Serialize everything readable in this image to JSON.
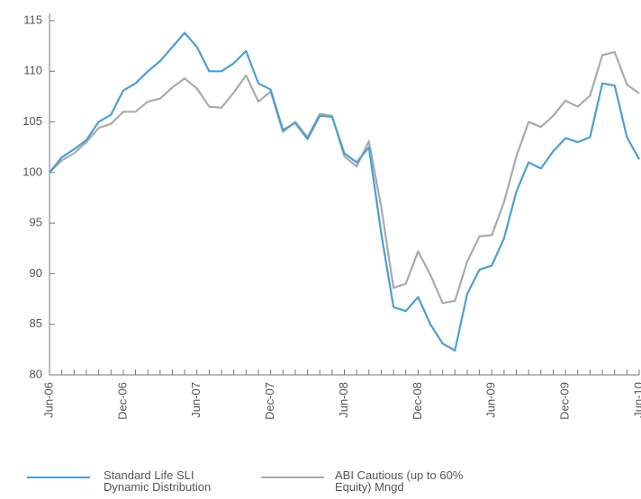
{
  "chart_data": {
    "type": "line",
    "categories": [
      "Jun-06",
      null,
      null,
      null,
      null,
      null,
      "Dec-06",
      null,
      null,
      null,
      null,
      null,
      "Jun-07",
      null,
      null,
      null,
      null,
      null,
      "Dec-07",
      null,
      null,
      null,
      null,
      null,
      "Jun-08",
      null,
      null,
      null,
      null,
      null,
      "Dec-08",
      null,
      null,
      null,
      null,
      null,
      "Jun-09",
      null,
      null,
      null,
      null,
      null,
      "Dec-09",
      null,
      null,
      null,
      null,
      null,
      "Jun-10"
    ],
    "series": [
      {
        "name": "Standard Life SLI Dynamic Distribution",
        "color": "#4a9fd8",
        "values": [
          100,
          101.5,
          102.3,
          103.2,
          105,
          105.7,
          108.1,
          108.8,
          110,
          111,
          112.4,
          113.8,
          112.4,
          110,
          110,
          110.8,
          112,
          108.8,
          108.2,
          104.2,
          104.9,
          103.3,
          105.6,
          105.5,
          101.9,
          101,
          102.5,
          94,
          86.7,
          86.3,
          87.7,
          85,
          83.1,
          82.4,
          88,
          90.4,
          90.8,
          93.5,
          98.1,
          101,
          100.4,
          102.1,
          103.4,
          103,
          103.5,
          108.8,
          108.6,
          103.5,
          101.3
        ]
      },
      {
        "name": "ABI Cautious (up to 60% Equity) Mngd",
        "color": "#a8aaac",
        "values": [
          100,
          101.2,
          101.9,
          103,
          104.4,
          104.8,
          106,
          106,
          107,
          107.3,
          108.4,
          109.3,
          108.3,
          106.5,
          106.4,
          107.9,
          109.6,
          107,
          108,
          104,
          105,
          103.5,
          105.8,
          105.6,
          101.6,
          100.6,
          103.1,
          96.6,
          88.6,
          89,
          92.2,
          89.9,
          87.1,
          87.3,
          91.2,
          93.7,
          93.8,
          97.1,
          101.6,
          105,
          104.5,
          105.6,
          107.1,
          106.5,
          107.6,
          111.6,
          111.9,
          108.7,
          107.8
        ]
      }
    ],
    "ylim": [
      80,
      115
    ],
    "yticks": [
      80,
      85,
      90,
      95,
      100,
      105,
      110,
      115
    ]
  }
}
